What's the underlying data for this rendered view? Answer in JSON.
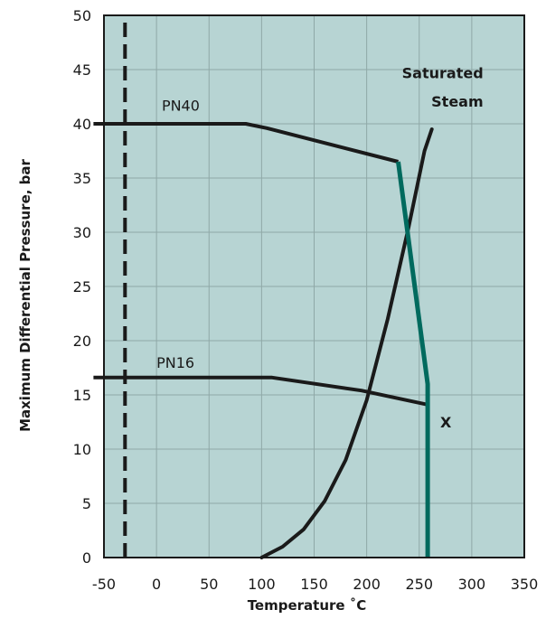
{
  "chart_data": {
    "type": "line",
    "xlabel": "Temperature ˚C",
    "ylabel": "Maximum Differential Pressure, bar",
    "xlim": [
      -50,
      350
    ],
    "ylim": [
      0,
      50
    ],
    "x_ticks": [
      -50,
      0,
      50,
      100,
      150,
      200,
      250,
      300,
      350
    ],
    "y_ticks": [
      0,
      5,
      10,
      15,
      20,
      25,
      30,
      35,
      40,
      45,
      50
    ],
    "grid": true,
    "background_color": "#b7d4d3",
    "series": [
      {
        "name": "PN40",
        "color": "#1a1a1a",
        "x": [
          -60,
          85,
          105,
          230
        ],
        "y": [
          40,
          40,
          39.6,
          36.5
        ]
      },
      {
        "name": "PN16",
        "color": "#1a1a1a",
        "x": [
          -60,
          110,
          195,
          258
        ],
        "y": [
          16.6,
          16.6,
          15.4,
          14.1
        ]
      },
      {
        "name": "Saturated Steam",
        "color": "#1a1a1a",
        "x": [
          100,
          120,
          140,
          160,
          180,
          200,
          220,
          240,
          255,
          262
        ],
        "y": [
          0,
          1.0,
          2.6,
          5.2,
          9.0,
          14.5,
          22.0,
          30.5,
          37.5,
          39.5
        ]
      },
      {
        "name": "",
        "color": "#006a5e",
        "x": [
          230,
          258,
          258
        ],
        "y": [
          36.5,
          16.0,
          0
        ]
      },
      {
        "name": "",
        "color": "#1a1a1a",
        "dashed": true,
        "x": [
          -30,
          -30
        ],
        "y": [
          0,
          50
        ]
      }
    ],
    "annotations": [
      {
        "text": "PN40",
        "x": 5,
        "y": 41.2
      },
      {
        "text": "PN16",
        "x": 0,
        "y": 17.5
      },
      {
        "text": "Saturated",
        "x": 285,
        "y": 44.2,
        "bold": true
      },
      {
        "text": "Steam",
        "x": 285,
        "y": 41.6,
        "bold": true
      },
      {
        "text": "X",
        "x": 270,
        "y": 12.0,
        "bold": true
      }
    ]
  }
}
